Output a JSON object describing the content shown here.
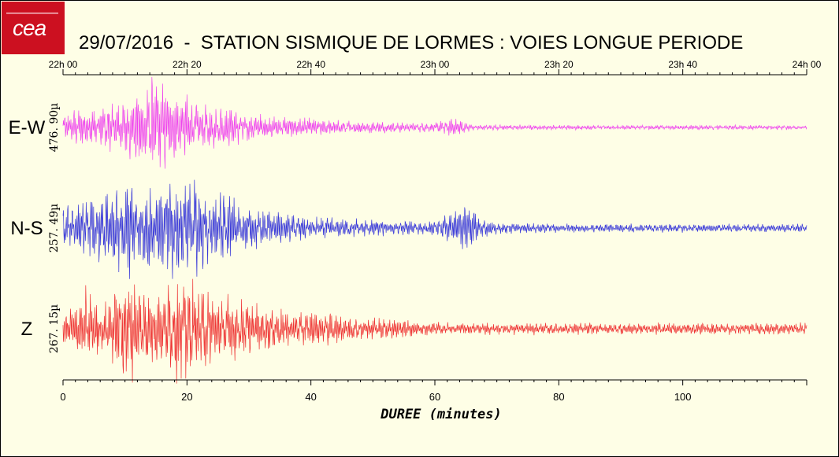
{
  "title": "29/07/2016  -  STATION SISMIQUE DE LORMES : VOIES LONGUE PERIODE",
  "logo": {
    "text": "cea",
    "color": "#cc1020"
  },
  "chart_data": {
    "type": "line",
    "top_axis": {
      "ticks": [
        "22h 00",
        "22h 20",
        "22h 40",
        "23h 00",
        "23h 20",
        "23h 40",
        "24h 00"
      ]
    },
    "x_axis": {
      "label": "DUREE (minutes)",
      "ticks": [
        0,
        20,
        40,
        60,
        80,
        100
      ],
      "range": [
        0,
        120
      ]
    },
    "grid": false,
    "series": [
      {
        "name": "E-W",
        "scale": "476. 90µ",
        "color": "#ee44ee",
        "envelope": [
          [
            0,
            0.25
          ],
          [
            2,
            0.3
          ],
          [
            4,
            0.35
          ],
          [
            6,
            0.4
          ],
          [
            8,
            0.45
          ],
          [
            10,
            0.5
          ],
          [
            12,
            0.7
          ],
          [
            14,
            0.85
          ],
          [
            15,
            1.0
          ],
          [
            16,
            0.8
          ],
          [
            18,
            0.6
          ],
          [
            20,
            0.55
          ],
          [
            22,
            0.45
          ],
          [
            24,
            0.4
          ],
          [
            26,
            0.35
          ],
          [
            30,
            0.25
          ],
          [
            34,
            0.2
          ],
          [
            40,
            0.15
          ],
          [
            50,
            0.1
          ],
          [
            60,
            0.08
          ],
          [
            62,
            0.15
          ],
          [
            65,
            0.12
          ],
          [
            66,
            0.05
          ],
          [
            80,
            0.04
          ],
          [
            100,
            0.04
          ],
          [
            120,
            0.04
          ]
        ]
      },
      {
        "name": "N-S",
        "scale": "257. 49µ",
        "color": "#3838d8",
        "envelope": [
          [
            0,
            0.45
          ],
          [
            2,
            0.5
          ],
          [
            4,
            0.55
          ],
          [
            6,
            0.6
          ],
          [
            8,
            0.7
          ],
          [
            10,
            0.95
          ],
          [
            12,
            0.7
          ],
          [
            14,
            0.75
          ],
          [
            16,
            0.8
          ],
          [
            18,
            1.0
          ],
          [
            20,
            0.85
          ],
          [
            22,
            0.8
          ],
          [
            24,
            0.7
          ],
          [
            26,
            0.7
          ],
          [
            28,
            0.45
          ],
          [
            30,
            0.35
          ],
          [
            34,
            0.3
          ],
          [
            40,
            0.2
          ],
          [
            50,
            0.15
          ],
          [
            60,
            0.12
          ],
          [
            63,
            0.3
          ],
          [
            66,
            0.45
          ],
          [
            67,
            0.2
          ],
          [
            70,
            0.1
          ],
          [
            80,
            0.08
          ],
          [
            100,
            0.07
          ],
          [
            120,
            0.07
          ]
        ]
      },
      {
        "name": "Z",
        "scale": "267. 15µ",
        "color": "#ee3333",
        "envelope": [
          [
            0,
            0.3
          ],
          [
            2,
            0.4
          ],
          [
            4,
            0.75
          ],
          [
            6,
            0.4
          ],
          [
            8,
            0.55
          ],
          [
            10,
            1.0
          ],
          [
            12,
            0.8
          ],
          [
            14,
            0.6
          ],
          [
            16,
            0.7
          ],
          [
            18,
            0.85
          ],
          [
            20,
            0.95
          ],
          [
            22,
            0.75
          ],
          [
            24,
            0.6
          ],
          [
            26,
            0.55
          ],
          [
            28,
            0.6
          ],
          [
            30,
            0.45
          ],
          [
            34,
            0.35
          ],
          [
            40,
            0.3
          ],
          [
            50,
            0.2
          ],
          [
            60,
            0.12
          ],
          [
            70,
            0.1
          ],
          [
            80,
            0.1
          ],
          [
            100,
            0.1
          ],
          [
            120,
            0.1
          ]
        ]
      }
    ]
  }
}
